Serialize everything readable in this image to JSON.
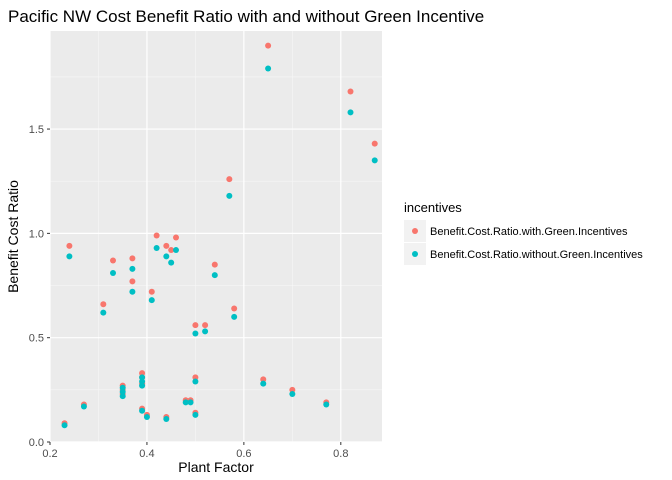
{
  "chart_data": {
    "type": "scatter",
    "title": "Pacific NW Cost Benefit Ratio with and without Green Incentive",
    "xlabel": "Plant Factor",
    "ylabel": "Benefit Cost Ratio",
    "xlim": [
      0.2,
      0.885
    ],
    "ylim": [
      0.0,
      1.97
    ],
    "x_ticks": [
      0.2,
      0.4,
      0.6,
      0.8
    ],
    "x_tick_labels": [
      "0.2",
      "0.4",
      "0.6",
      "0.8"
    ],
    "y_ticks": [
      0.0,
      0.5,
      1.0,
      1.5
    ],
    "y_tick_labels": [
      "0.0",
      "0.5",
      "1.0",
      "1.5"
    ],
    "grid": true,
    "legend": {
      "title": "incentives",
      "position": "right"
    },
    "series": [
      {
        "name": "Benefit.Cost.Ratio.with.Green.Incentives",
        "color": "#F8766D",
        "points": [
          [
            0.23,
            0.09
          ],
          [
            0.24,
            0.94
          ],
          [
            0.27,
            0.18
          ],
          [
            0.31,
            0.66
          ],
          [
            0.33,
            0.87
          ],
          [
            0.35,
            0.23
          ],
          [
            0.35,
            0.25
          ],
          [
            0.35,
            0.27
          ],
          [
            0.37,
            0.77
          ],
          [
            0.37,
            0.88
          ],
          [
            0.39,
            0.16
          ],
          [
            0.39,
            0.28
          ],
          [
            0.39,
            0.31
          ],
          [
            0.39,
            0.33
          ],
          [
            0.4,
            0.13
          ],
          [
            0.41,
            0.72
          ],
          [
            0.42,
            0.99
          ],
          [
            0.44,
            0.12
          ],
          [
            0.44,
            0.94
          ],
          [
            0.45,
            0.92
          ],
          [
            0.46,
            0.98
          ],
          [
            0.48,
            0.2
          ],
          [
            0.49,
            0.2
          ],
          [
            0.5,
            0.14
          ],
          [
            0.5,
            0.31
          ],
          [
            0.5,
            0.56
          ],
          [
            0.52,
            0.56
          ],
          [
            0.54,
            0.85
          ],
          [
            0.57,
            1.26
          ],
          [
            0.58,
            0.64
          ],
          [
            0.64,
            0.3
          ],
          [
            0.65,
            1.9
          ],
          [
            0.7,
            0.25
          ],
          [
            0.77,
            0.19
          ],
          [
            0.82,
            1.68
          ],
          [
            0.87,
            1.43
          ]
        ]
      },
      {
        "name": "Benefit.Cost.Ratio.without.Green.Incentives",
        "color": "#00BFC4",
        "points": [
          [
            0.23,
            0.08
          ],
          [
            0.24,
            0.89
          ],
          [
            0.27,
            0.17
          ],
          [
            0.31,
            0.62
          ],
          [
            0.33,
            0.81
          ],
          [
            0.35,
            0.22
          ],
          [
            0.35,
            0.24
          ],
          [
            0.35,
            0.26
          ],
          [
            0.37,
            0.72
          ],
          [
            0.37,
            0.83
          ],
          [
            0.39,
            0.15
          ],
          [
            0.39,
            0.27
          ],
          [
            0.39,
            0.29
          ],
          [
            0.39,
            0.31
          ],
          [
            0.4,
            0.12
          ],
          [
            0.41,
            0.68
          ],
          [
            0.42,
            0.93
          ],
          [
            0.44,
            0.11
          ],
          [
            0.44,
            0.89
          ],
          [
            0.45,
            0.86
          ],
          [
            0.46,
            0.92
          ],
          [
            0.48,
            0.19
          ],
          [
            0.49,
            0.19
          ],
          [
            0.5,
            0.13
          ],
          [
            0.5,
            0.29
          ],
          [
            0.5,
            0.52
          ],
          [
            0.52,
            0.53
          ],
          [
            0.54,
            0.8
          ],
          [
            0.57,
            1.18
          ],
          [
            0.58,
            0.6
          ],
          [
            0.64,
            0.28
          ],
          [
            0.65,
            1.79
          ],
          [
            0.7,
            0.23
          ],
          [
            0.77,
            0.18
          ],
          [
            0.82,
            1.58
          ],
          [
            0.87,
            1.35
          ]
        ]
      }
    ]
  }
}
